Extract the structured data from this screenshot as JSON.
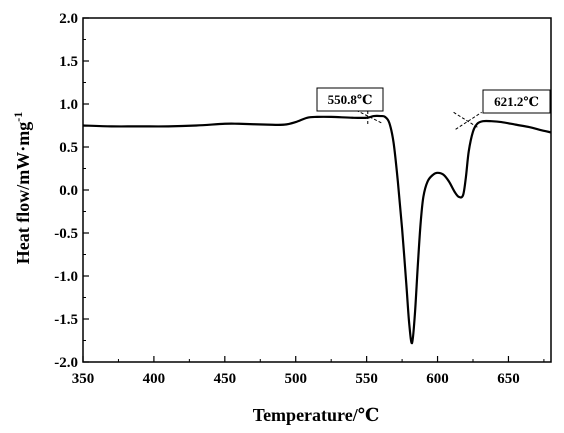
{
  "chart_data": {
    "type": "line",
    "xlabel": "Temperature/℃",
    "ylabel": "Heat flow/mW·mg",
    "ylabel_superscript": "-1",
    "xlim": [
      350,
      680
    ],
    "ylim": [
      -2.0,
      2.0
    ],
    "x_ticks": [
      350,
      400,
      450,
      500,
      550,
      600,
      650
    ],
    "x_tick_labels": [
      "350",
      "400",
      "450",
      "500",
      "550",
      "600",
      "650"
    ],
    "y_ticks": [
      2.0,
      1.5,
      1.0,
      0.5,
      0.0,
      -0.5,
      -1.0,
      -1.5,
      -2.0
    ],
    "y_tick_labels": [
      "2.0",
      "1.5",
      "1.0",
      "0.5",
      "0.0",
      "-0.5",
      "-1.0",
      "-1.5",
      "-2.0"
    ],
    "grid": false,
    "legend": "none",
    "line_color": "#000000",
    "series": [
      {
        "x": [
          350,
          370,
          390,
          410,
          430,
          450,
          460,
          480,
          492,
          500,
          508,
          515,
          525,
          540,
          550,
          555,
          560,
          563,
          566,
          569,
          572,
          575,
          578,
          580,
          582,
          584,
          586,
          588,
          590,
          593,
          597,
          600,
          604,
          608,
          612,
          615,
          618,
          620,
          622,
          625,
          628,
          632,
          638,
          645,
          655,
          665,
          672,
          680
        ],
        "y": [
          0.75,
          0.74,
          0.74,
          0.74,
          0.75,
          0.77,
          0.77,
          0.76,
          0.76,
          0.79,
          0.84,
          0.85,
          0.85,
          0.84,
          0.84,
          0.86,
          0.86,
          0.85,
          0.78,
          0.55,
          0.1,
          -0.45,
          -1.1,
          -1.55,
          -1.78,
          -1.45,
          -0.9,
          -0.4,
          -0.08,
          0.1,
          0.18,
          0.2,
          0.18,
          0.1,
          -0.02,
          -0.08,
          -0.06,
          0.15,
          0.45,
          0.68,
          0.77,
          0.8,
          0.8,
          0.79,
          0.76,
          0.73,
          0.7,
          0.67
        ]
      }
    ],
    "annotations": [
      {
        "text": "550.8℃",
        "x": 550.8,
        "y": 0.86
      },
      {
        "text": "621.2℃",
        "x": 621.2,
        "y": 0.81
      }
    ]
  }
}
